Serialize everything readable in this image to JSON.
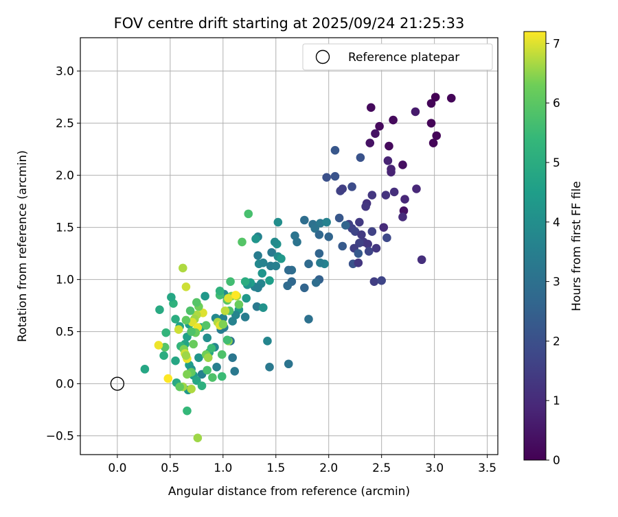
{
  "chart_data": {
    "type": "scatter",
    "title": "FOV centre drift starting at 2025/09/24 21:25:33",
    "xlabel": "Angular distance from reference (arcmin)",
    "ylabel": "Rotation from reference (arcmin)",
    "xlim": [
      -0.35,
      3.6
    ],
    "ylim": [
      -0.68,
      3.32
    ],
    "xticks": [
      0.0,
      0.5,
      1.0,
      1.5,
      2.0,
      2.5,
      3.0,
      3.5
    ],
    "xtick_labels": [
      "0.0",
      "0.5",
      "1.0",
      "1.5",
      "2.0",
      "2.5",
      "3.0",
      "3.5"
    ],
    "yticks": [
      -0.5,
      0.0,
      0.5,
      1.0,
      1.5,
      2.0,
      2.5,
      3.0
    ],
    "ytick_labels": [
      "−0.5",
      "0.0",
      "0.5",
      "1.0",
      "1.5",
      "2.0",
      "2.5",
      "3.0"
    ],
    "grid": true,
    "legend": {
      "placement": "top-right",
      "entries": [
        "Reference platepar"
      ]
    },
    "reference_point": {
      "label": "Reference platepar",
      "x": 0.0,
      "y": 0.0,
      "marker": "open-circle"
    },
    "colorbar": {
      "label": "Hours from first FF file",
      "range": [
        0,
        7.2
      ],
      "ticks": [
        0,
        1,
        2,
        3,
        4,
        5,
        6,
        7
      ],
      "tick_labels": [
        "0",
        "1",
        "2",
        "3",
        "4",
        "5",
        "6",
        "7"
      ],
      "colormap": "viridis"
    },
    "series": [
      {
        "points": [
          [
            2.4,
            2.65,
            0.2
          ],
          [
            2.48,
            2.47,
            0.2
          ],
          [
            2.61,
            2.53,
            0.2
          ],
          [
            2.44,
            2.4,
            0.4
          ],
          [
            2.39,
            2.31,
            0.4
          ],
          [
            2.57,
            2.28,
            0.2
          ],
          [
            2.82,
            2.61,
            0.6
          ],
          [
            2.97,
            2.69,
            0.1
          ],
          [
            3.01,
            2.75,
            0.0
          ],
          [
            3.16,
            2.74,
            0.1
          ],
          [
            2.97,
            2.5,
            0.1
          ],
          [
            3.02,
            2.38,
            0.1
          ],
          [
            2.99,
            2.31,
            0.1
          ],
          [
            2.7,
            2.1,
            0.3
          ],
          [
            2.56,
            2.14,
            0.8
          ],
          [
            2.59,
            2.06,
            0.8
          ],
          [
            2.59,
            2.03,
            0.8
          ],
          [
            2.06,
            2.24,
            2.2
          ],
          [
            2.3,
            2.17,
            2.1
          ],
          [
            2.06,
            1.99,
            2.1
          ],
          [
            1.98,
            1.98,
            2.0
          ],
          [
            2.11,
            1.85,
            1.6
          ],
          [
            2.13,
            1.87,
            1.5
          ],
          [
            2.22,
            1.89,
            1.9
          ],
          [
            2.41,
            1.81,
            1.3
          ],
          [
            2.62,
            1.84,
            1.1
          ],
          [
            2.83,
            1.87,
            0.9
          ],
          [
            2.54,
            1.81,
            1.2
          ],
          [
            2.72,
            1.77,
            0.9
          ],
          [
            2.36,
            1.73,
            1.2
          ],
          [
            2.35,
            1.7,
            1.3
          ],
          [
            2.71,
            1.66,
            0.4
          ],
          [
            2.7,
            1.6,
            1.0
          ],
          [
            2.52,
            1.5,
            1.0
          ],
          [
            2.55,
            1.4,
            1.8
          ],
          [
            2.88,
            1.19,
            1.1
          ],
          [
            2.29,
            1.55,
            1.4
          ],
          [
            2.19,
            1.53,
            1.6
          ],
          [
            2.1,
            1.59,
            2.2
          ],
          [
            2.22,
            1.49,
            1.6
          ],
          [
            2.16,
            1.52,
            2.6
          ],
          [
            2.25,
            1.46,
            1.7
          ],
          [
            2.31,
            1.43,
            1.4
          ],
          [
            2.41,
            1.46,
            1.6
          ],
          [
            2.33,
            1.36,
            1.4
          ],
          [
            2.37,
            1.34,
            1.3
          ],
          [
            2.29,
            1.35,
            1.6
          ],
          [
            2.24,
            1.3,
            1.5
          ],
          [
            2.13,
            1.32,
            2.3
          ],
          [
            2.23,
            1.15,
            2.1
          ],
          [
            2.28,
            1.16,
            1.3
          ],
          [
            2.38,
            1.27,
            1.7
          ],
          [
            2.45,
            1.3,
            1.3
          ],
          [
            2.43,
            0.98,
            1.5
          ],
          [
            2.5,
            0.99,
            1.7
          ],
          [
            2.28,
            1.25,
            2.3
          ],
          [
            1.77,
            1.57,
            2.9
          ],
          [
            1.85,
            1.53,
            3.0
          ],
          [
            1.92,
            1.54,
            3.3
          ],
          [
            1.87,
            1.49,
            3.1
          ],
          [
            1.91,
            1.43,
            2.7
          ],
          [
            2.0,
            1.41,
            2.6
          ],
          [
            1.98,
            1.55,
            3.6
          ],
          [
            1.68,
            1.42,
            3.1
          ],
          [
            1.7,
            1.36,
            3.1
          ],
          [
            1.81,
            1.15,
            2.8
          ],
          [
            1.91,
            1.25,
            2.6
          ],
          [
            1.91,
            1.0,
            2.5
          ],
          [
            1.88,
            0.97,
            2.9
          ],
          [
            1.77,
            0.92,
            2.6
          ],
          [
            1.65,
            0.98,
            2.7
          ],
          [
            1.61,
            0.94,
            2.8
          ],
          [
            1.65,
            1.09,
            2.9
          ],
          [
            1.62,
            1.09,
            2.8
          ],
          [
            1.81,
            0.62,
            3.0
          ],
          [
            1.62,
            0.19,
            3.1
          ],
          [
            1.44,
            0.16,
            3.3
          ],
          [
            1.96,
            1.15,
            3.6
          ],
          [
            1.92,
            1.16,
            3.4
          ],
          [
            1.52,
            1.55,
            4.0
          ],
          [
            1.33,
            1.41,
            3.6
          ],
          [
            1.31,
            1.39,
            4.2
          ],
          [
            1.46,
            1.26,
            3.3
          ],
          [
            1.52,
            1.22,
            3.9
          ],
          [
            1.55,
            1.2,
            4.3
          ],
          [
            1.33,
            1.23,
            3.4
          ],
          [
            1.34,
            1.15,
            3.8
          ],
          [
            1.38,
            1.16,
            3.6
          ],
          [
            1.45,
            1.13,
            3.4
          ],
          [
            1.5,
            1.13,
            3.5
          ],
          [
            1.51,
            1.34,
            4.1
          ],
          [
            1.49,
            1.36,
            3.9
          ],
          [
            1.37,
            1.06,
            4.2
          ],
          [
            1.44,
            0.99,
            4.5
          ],
          [
            1.36,
            0.96,
            3.7
          ],
          [
            1.3,
            0.93,
            3.6
          ],
          [
            1.33,
            0.92,
            3.5
          ],
          [
            1.26,
            0.97,
            4.5
          ],
          [
            1.23,
            0.95,
            4.2
          ],
          [
            1.32,
            0.74,
            3.3
          ],
          [
            1.38,
            0.73,
            4.1
          ],
          [
            1.15,
            0.71,
            4.3
          ],
          [
            1.12,
            0.66,
            3.7
          ],
          [
            1.21,
            0.64,
            3.4
          ],
          [
            1.22,
            0.82,
            4.3
          ],
          [
            1.09,
            0.6,
            3.6
          ],
          [
            1.07,
            0.41,
            3.2
          ],
          [
            1.09,
            0.25,
            3.2
          ],
          [
            1.11,
            0.12,
            3.3
          ],
          [
            1.42,
            0.41,
            3.7
          ],
          [
            1.0,
            0.63,
            3.6
          ],
          [
            1.01,
            0.54,
            3.5
          ],
          [
            0.98,
            0.52,
            3.4
          ],
          [
            1.01,
            0.86,
            3.9
          ],
          [
            0.83,
            0.84,
            4.3
          ],
          [
            0.93,
            0.63,
            3.8
          ],
          [
            0.85,
            0.44,
            4.0
          ],
          [
            0.92,
            0.35,
            3.8
          ],
          [
            0.94,
            0.16,
            3.5
          ],
          [
            0.8,
            0.09,
            3.6
          ],
          [
            0.77,
            0.25,
            4.2
          ],
          [
            0.87,
            0.3,
            4.8
          ],
          [
            0.79,
            0.54,
            4.8
          ],
          [
            0.73,
            0.62,
            5.0
          ],
          [
            0.68,
            0.57,
            4.5
          ],
          [
            0.66,
            0.45,
            4.6
          ],
          [
            0.64,
            0.38,
            4.7
          ],
          [
            0.68,
            0.18,
            4.5
          ],
          [
            0.7,
            0.14,
            4.2
          ],
          [
            0.67,
            -0.06,
            4.3
          ],
          [
            0.72,
            0.08,
            4.5
          ],
          [
            0.75,
            0.03,
            4.8
          ],
          [
            0.8,
            -0.02,
            5.1
          ],
          [
            0.56,
            0.01,
            4.9
          ],
          [
            0.55,
            0.22,
            4.8
          ],
          [
            0.53,
            0.77,
            5.2
          ],
          [
            0.51,
            0.83,
            4.8
          ],
          [
            0.55,
            0.62,
            5.0
          ],
          [
            0.59,
            0.55,
            4.6
          ],
          [
            0.6,
            0.36,
            5.3
          ],
          [
            0.4,
            0.71,
            4.9
          ],
          [
            0.46,
            0.49,
            5.3
          ],
          [
            0.44,
            0.27,
            5.0
          ],
          [
            0.45,
            0.35,
            5.2
          ],
          [
            0.26,
            0.14,
            4.8
          ],
          [
            1.24,
            1.63,
            5.7
          ],
          [
            1.18,
            1.36,
            5.9
          ],
          [
            1.07,
            0.98,
            5.6
          ],
          [
            0.97,
            0.85,
            5.6
          ],
          [
            0.97,
            0.89,
            5.2
          ],
          [
            1.21,
            0.98,
            5.0
          ],
          [
            1.08,
            0.84,
            6.3
          ],
          [
            1.04,
            0.8,
            6.0
          ],
          [
            1.13,
            0.84,
            6.6
          ],
          [
            1.15,
            0.76,
            6.2
          ],
          [
            1.06,
            0.7,
            5.8
          ],
          [
            1.05,
            0.82,
            7.0
          ],
          [
            1.12,
            0.85,
            7.2
          ],
          [
            1.02,
            0.7,
            6.8
          ],
          [
            0.95,
            0.59,
            6.7
          ],
          [
            0.97,
            0.56,
            7.0
          ],
          [
            1.0,
            0.57,
            6.4
          ],
          [
            0.99,
            0.28,
            5.8
          ],
          [
            0.99,
            0.07,
            5.5
          ],
          [
            0.9,
            0.06,
            5.8
          ],
          [
            0.84,
            0.28,
            6.3
          ],
          [
            0.86,
            0.25,
            6.6
          ],
          [
            0.89,
            0.34,
            5.5
          ],
          [
            0.85,
            0.13,
            5.7
          ],
          [
            0.84,
            0.56,
            5.9
          ],
          [
            0.81,
            0.68,
            7.0
          ],
          [
            0.77,
            0.74,
            6.3
          ],
          [
            0.75,
            0.66,
            6.7
          ],
          [
            0.73,
            0.62,
            6.6
          ],
          [
            0.71,
            0.59,
            7.0
          ],
          [
            0.76,
            0.54,
            7.1
          ],
          [
            0.74,
            0.49,
            6.2
          ],
          [
            0.7,
            0.5,
            5.8
          ],
          [
            0.69,
            0.7,
            5.8
          ],
          [
            0.75,
            0.78,
            5.9
          ],
          [
            0.65,
            0.93,
            6.9
          ],
          [
            0.62,
            1.11,
            6.7
          ],
          [
            0.65,
            0.61,
            6.1
          ],
          [
            0.58,
            0.52,
            6.9
          ],
          [
            0.63,
            0.33,
            6.4
          ],
          [
            0.64,
            0.29,
            6.9
          ],
          [
            0.66,
            0.24,
            7.1
          ],
          [
            0.65,
            0.27,
            6.6
          ],
          [
            0.72,
            0.38,
            6.2
          ],
          [
            0.7,
            0.11,
            6.1
          ],
          [
            0.66,
            0.09,
            6.4
          ],
          [
            0.62,
            -0.03,
            6.6
          ],
          [
            0.7,
            -0.05,
            6.7
          ],
          [
            0.59,
            -0.03,
            6.1
          ],
          [
            0.48,
            0.05,
            7.2
          ],
          [
            0.45,
            0.35,
            5.9
          ],
          [
            0.39,
            0.37,
            7.1
          ],
          [
            0.66,
            -0.26,
            5.4
          ],
          [
            0.76,
            -0.52,
            6.6
          ],
          [
            1.05,
            0.41,
            6.5
          ],
          [
            1.04,
            0.42,
            5.6
          ]
        ]
      }
    ]
  }
}
